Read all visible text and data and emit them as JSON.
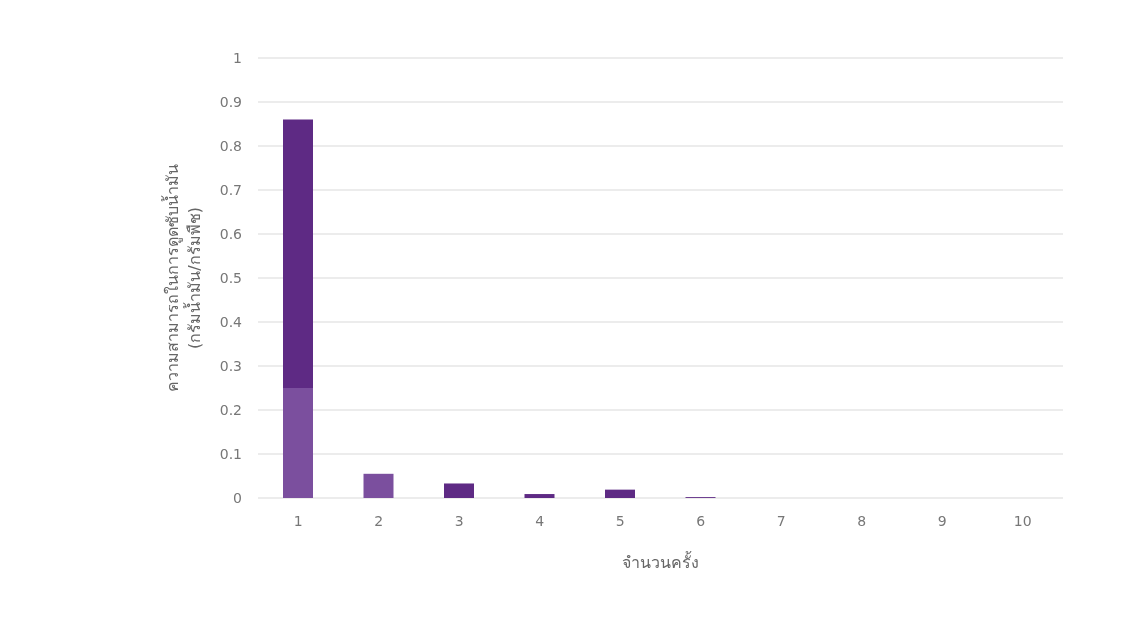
{
  "chart_data": {
    "type": "bar",
    "stacked": true,
    "categories": [
      "1",
      "2",
      "3",
      "4",
      "5",
      "6",
      "7",
      "8",
      "9",
      "10"
    ],
    "series": [
      {
        "color": "#7b4f9e",
        "values": [
          0.25,
          0.055,
          null,
          null,
          null,
          null,
          null,
          null,
          null,
          null
        ]
      },
      {
        "color": "#5e2a84",
        "values": [
          0.61,
          null,
          0.033,
          0.009,
          0.019,
          0.002,
          null,
          null,
          null,
          null
        ]
      }
    ],
    "xlabel": "จำนวนครั้ง",
    "ylabel": "ความสามารถในการดูดซับน้ำมัน\n(กรัมน้ำมัน/กรัมพืช)",
    "ylim": [
      0,
      1
    ],
    "yticks": [
      0,
      0.1,
      0.2,
      0.3,
      0.4,
      0.5,
      0.6,
      0.7,
      0.8,
      0.9,
      1
    ],
    "grid": "y"
  }
}
